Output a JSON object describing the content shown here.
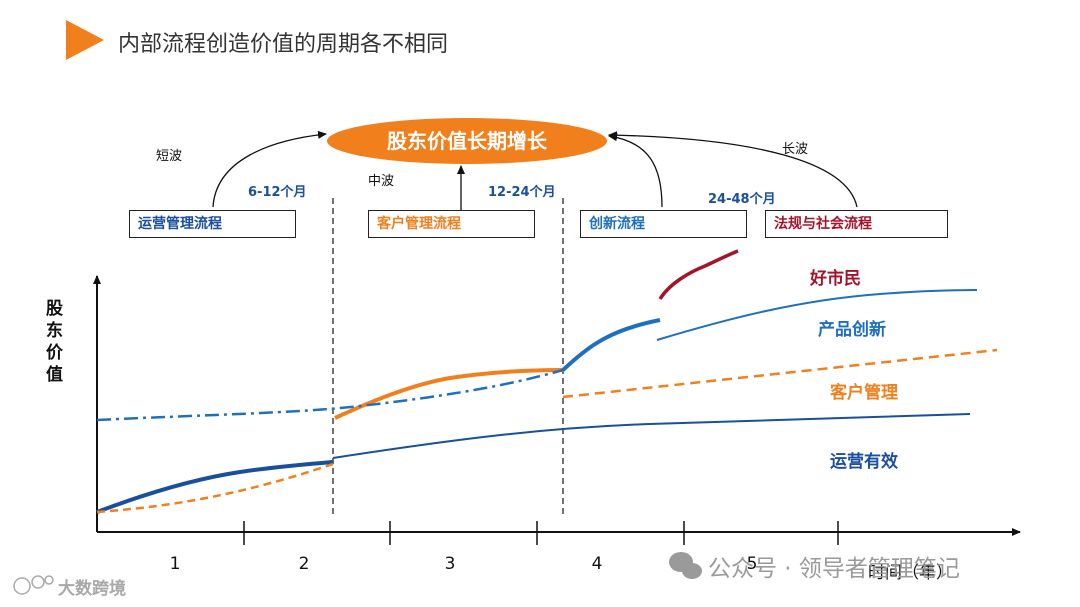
{
  "title": "内部流程创造价值的周期各不相同",
  "center": "股东价值长期增长",
  "waves": {
    "short": "短波",
    "medium": "中波",
    "long": "长波"
  },
  "periods": {
    "p1": "6-12个月",
    "p2": "12-24个月",
    "p3": "24-48个月"
  },
  "processes": [
    {
      "label": "运营管理流程",
      "color": "#1a4f9c"
    },
    {
      "label": "客户管理流程",
      "color": "#f07f1c"
    },
    {
      "label": "创新流程",
      "color": "#1f6fbf"
    },
    {
      "label": "法规与社会流程",
      "color": "#a3142b"
    }
  ],
  "axes": {
    "y_label": "股东价值",
    "x_label": "时间（年）",
    "x_ticks": [
      "1",
      "2",
      "3",
      "4",
      "5"
    ]
  },
  "curves": {
    "citizen": {
      "label": "好市民",
      "color": "#a3142b"
    },
    "innovation": {
      "label": "产品创新",
      "color": "#1f6fbf"
    },
    "customer": {
      "label": "客户管理",
      "color": "#f07f1c"
    },
    "operations": {
      "label": "运营有效",
      "color": "#1a4f9c"
    }
  },
  "watermarks": {
    "left": "大数跨境",
    "right": "公众号 · 领导者管理笔记"
  }
}
